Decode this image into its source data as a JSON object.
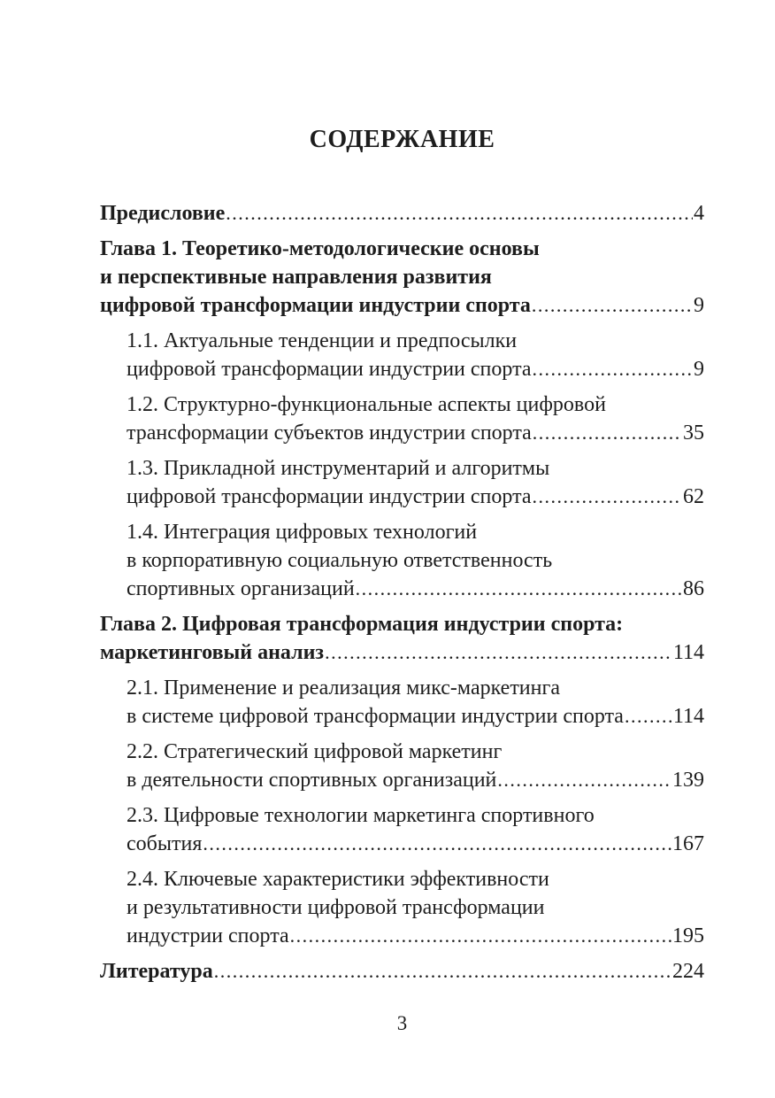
{
  "page": {
    "title": "СОДЕРЖАНИЕ",
    "folio": "3"
  },
  "toc": {
    "entries": [
      {
        "id": "preface",
        "level": "chapter",
        "lines": [
          {
            "text": "Предисловие",
            "page": "4"
          }
        ]
      },
      {
        "id": "chapter-1",
        "level": "chapter",
        "lines": [
          {
            "text": "Глава 1. Теоретико-методологические основы"
          },
          {
            "text": "и перспективные направления развития"
          },
          {
            "text": "цифровой трансформации индустрии спорта",
            "page": "9"
          }
        ]
      },
      {
        "id": "section-1-1",
        "level": "section",
        "lines": [
          {
            "text": "1.1. Актуальные тенденции и предпосылки"
          },
          {
            "text": "цифровой трансформации индустрии спорта",
            "page": "9"
          }
        ]
      },
      {
        "id": "section-1-2",
        "level": "section",
        "lines": [
          {
            "text": "1.2. Структурно-функциональные аспекты цифровой"
          },
          {
            "text": "трансформации субъектов индустрии спорта",
            "page": "35"
          }
        ]
      },
      {
        "id": "section-1-3",
        "level": "section",
        "lines": [
          {
            "text": "1.3. Прикладной инструментарий и алгоритмы"
          },
          {
            "text": "цифровой трансформации индустрии спорта",
            "page": "62"
          }
        ]
      },
      {
        "id": "section-1-4",
        "level": "section",
        "lines": [
          {
            "text": "1.4. Интеграция цифровых технологий"
          },
          {
            "text": "в корпоративную социальную ответственность"
          },
          {
            "text": "спортивных организаций",
            "page": "86"
          }
        ]
      },
      {
        "id": "chapter-2",
        "level": "chapter",
        "lines": [
          {
            "text": "Глава 2. Цифровая трансформация индустрии спорта:"
          },
          {
            "text": "маркетинговый анализ",
            "page": "114"
          }
        ]
      },
      {
        "id": "section-2-1",
        "level": "section",
        "lines": [
          {
            "text": "2.1. Применение и реализация микс-маркетинга"
          },
          {
            "text": "в системе цифровой трансформации индустрии спорта",
            "page": "114"
          }
        ]
      },
      {
        "id": "section-2-2",
        "level": "section",
        "lines": [
          {
            "text": "2.2. Стратегический цифровой маркетинг"
          },
          {
            "text": "в деятельности спортивных организаций",
            "page": "139"
          }
        ]
      },
      {
        "id": "section-2-3",
        "level": "section",
        "lines": [
          {
            "text": "2.3. Цифровые технологии маркетинга спортивного"
          },
          {
            "text": "события",
            "page": "167"
          }
        ]
      },
      {
        "id": "section-2-4",
        "level": "section",
        "lines": [
          {
            "text": "2.4. Ключевые характеристики эффективности"
          },
          {
            "text": "и результативности цифровой трансформации"
          },
          {
            "text": "индустрии спорта",
            "page": "195"
          }
        ]
      },
      {
        "id": "literature",
        "level": "chapter",
        "lines": [
          {
            "text": "Литература",
            "page": "224"
          }
        ]
      }
    ]
  }
}
